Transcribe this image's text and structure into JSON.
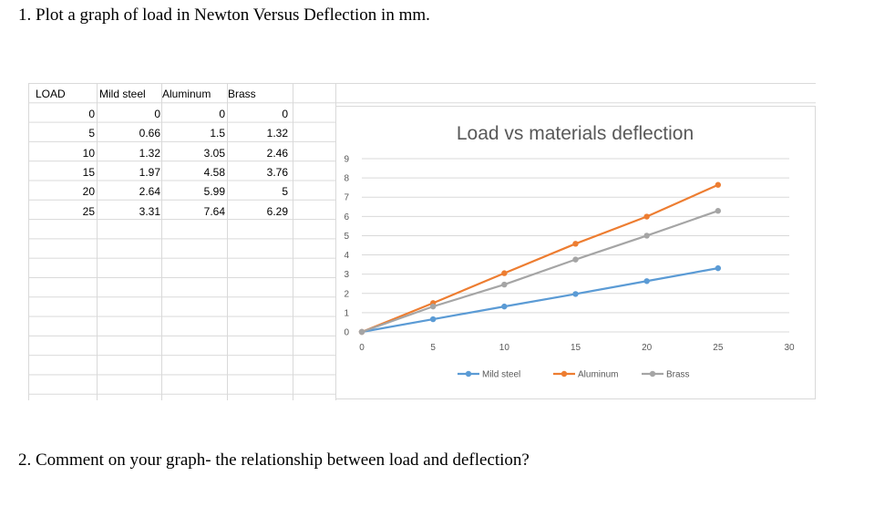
{
  "questions": {
    "q1": "1.   Plot a graph of load in Newton Versus Deflection in mm.",
    "q2": "2.   Comment on your graph- the relationship between load and deflection?"
  },
  "table": {
    "headers": [
      "LOAD",
      "Mild steel",
      "Aluminum",
      "Brass"
    ],
    "rows": [
      [
        "0",
        "0",
        "0",
        "0"
      ],
      [
        "5",
        "0.66",
        "1.5",
        "1.32"
      ],
      [
        "10",
        "1.32",
        "3.05",
        "2.46"
      ],
      [
        "15",
        "1.97",
        "4.58",
        "3.76"
      ],
      [
        "20",
        "2.64",
        "5.99",
        "5"
      ],
      [
        "25",
        "3.31",
        "7.64",
        "6.29"
      ]
    ]
  },
  "chart_data": {
    "type": "line",
    "title": "Load vs materials deflection",
    "xlabel": "",
    "ylabel": "",
    "x": [
      0,
      5,
      10,
      15,
      20,
      25
    ],
    "xlim": [
      0,
      30
    ],
    "ylim": [
      0,
      9
    ],
    "xticks": [
      0,
      5,
      10,
      15,
      20,
      25,
      30
    ],
    "yticks": [
      0,
      1,
      2,
      3,
      4,
      5,
      6,
      7,
      8,
      9
    ],
    "grid": true,
    "legend": "bottom",
    "series": [
      {
        "name": "Mild steel",
        "color": "#5b9bd5",
        "values": [
          0,
          0.66,
          1.32,
          1.97,
          2.64,
          3.31
        ]
      },
      {
        "name": "Aluminum",
        "color": "#ed7d31",
        "values": [
          0,
          1.5,
          3.05,
          4.58,
          5.99,
          7.64
        ]
      },
      {
        "name": "Brass",
        "color": "#a5a5a5",
        "values": [
          0,
          1.32,
          2.46,
          3.76,
          5,
          6.29
        ]
      }
    ]
  }
}
